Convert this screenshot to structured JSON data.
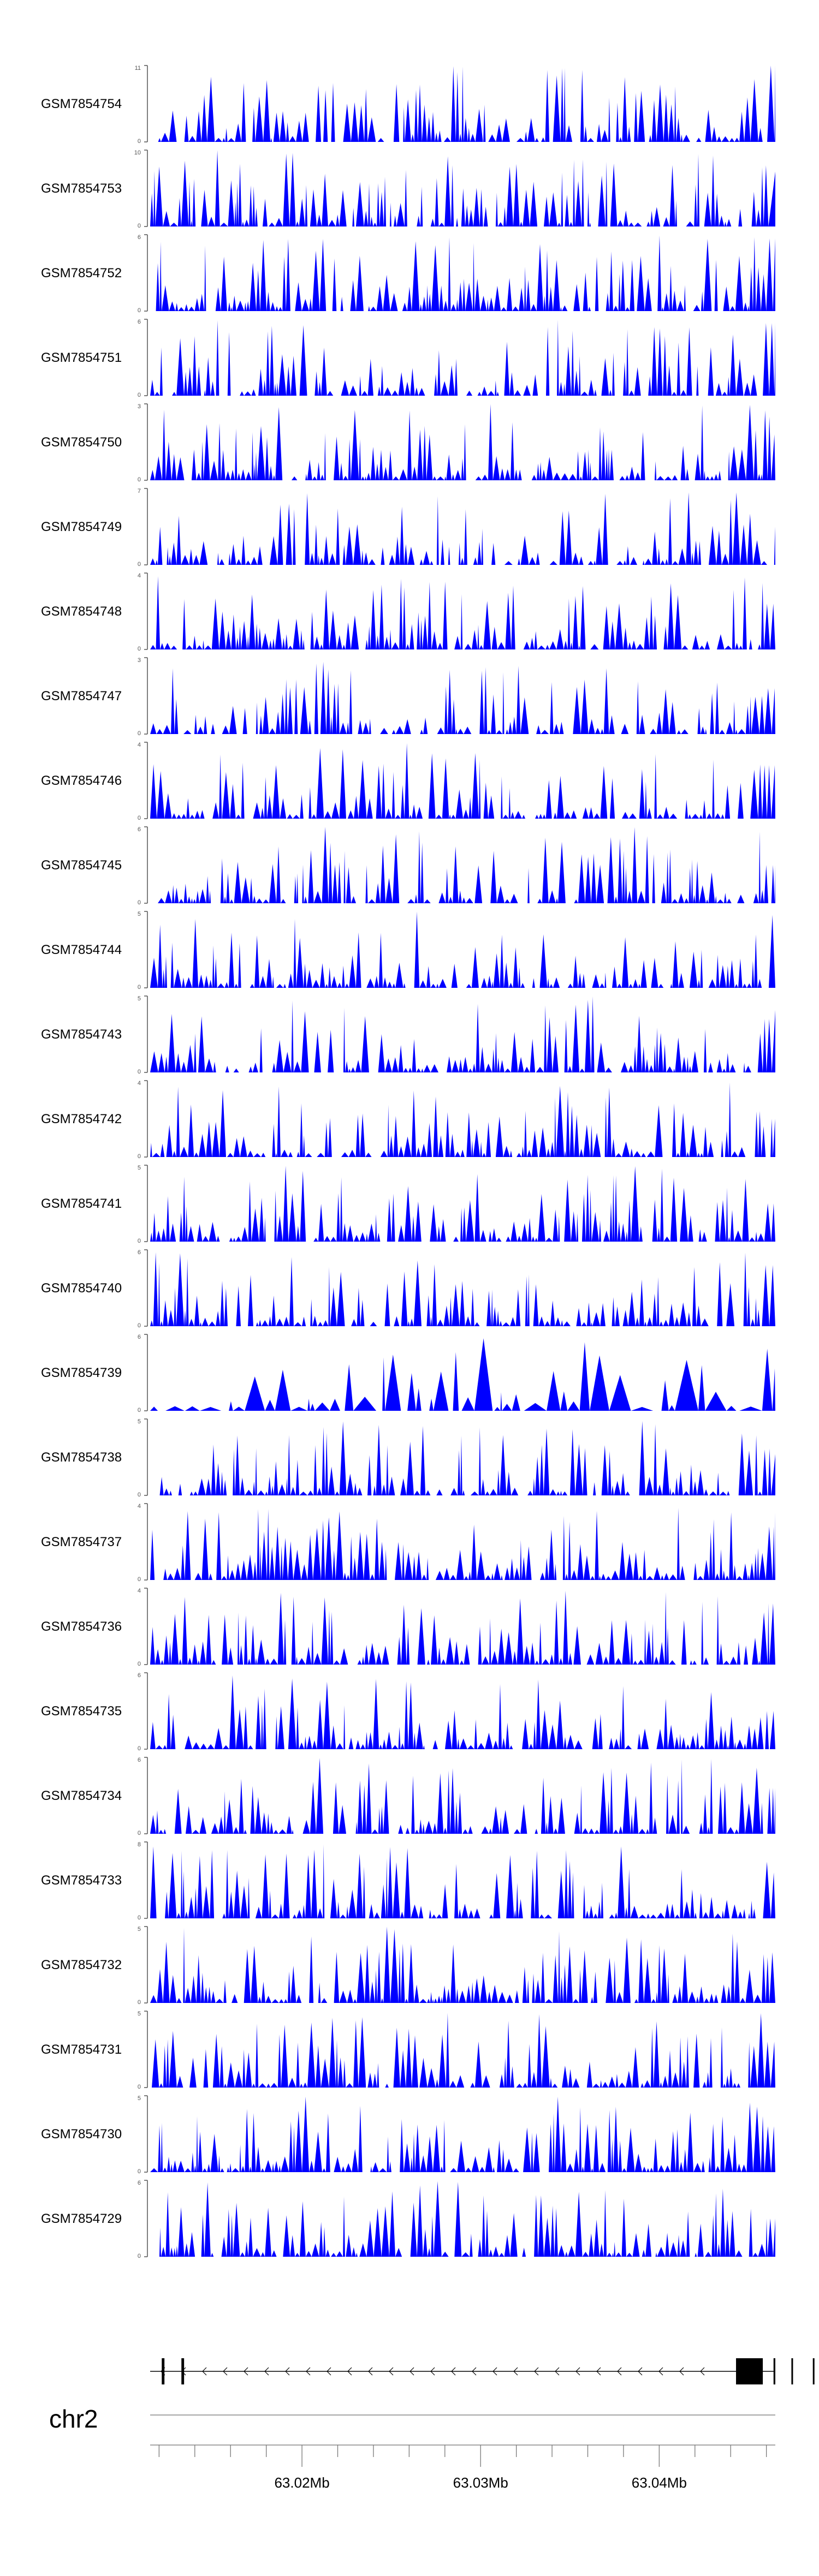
{
  "colors": {
    "signal": "#0000ff",
    "axis": "#555555",
    "gene": "#000000",
    "text": "#000000"
  },
  "chart_data": {
    "type": "area",
    "title": "",
    "xlabel": "",
    "ylabel": "",
    "chromosome": "chr2",
    "x_range_mb": [
      63.0115,
      63.0465
    ],
    "x_ticks": [
      {
        "value": 63.02,
        "label": "63.02Mb"
      },
      {
        "value": 63.03,
        "label": "63.03Mb"
      },
      {
        "value": 63.04,
        "label": "63.04Mb"
      }
    ],
    "tracks": [
      {
        "name": "GSM7854754",
        "ymax": 11,
        "ymin": 0,
        "seed": 11,
        "density": 0.55,
        "tail": 1.0
      },
      {
        "name": "GSM7854753",
        "ymax": 10,
        "ymin": 0,
        "seed": 12,
        "density": 0.5,
        "tail": 0.8
      },
      {
        "name": "GSM7854752",
        "ymax": 6,
        "ymin": 0,
        "seed": 13,
        "density": 0.6,
        "tail": 0.95
      },
      {
        "name": "GSM7854751",
        "ymax": 6,
        "ymin": 0,
        "seed": 14,
        "density": 0.55,
        "tail": 0.95
      },
      {
        "name": "GSM7854750",
        "ymax": 3,
        "ymin": 0,
        "seed": 15,
        "density": 0.8,
        "tail": 0.6
      },
      {
        "name": "GSM7854749",
        "ymax": 7,
        "ymin": 0,
        "seed": 16,
        "density": 0.45,
        "tail": 0.5
      },
      {
        "name": "GSM7854748",
        "ymax": 4,
        "ymin": 0,
        "seed": 17,
        "density": 0.6,
        "tail": 0.6
      },
      {
        "name": "GSM7854747",
        "ymax": 3,
        "ymin": 0,
        "seed": 18,
        "density": 0.5,
        "tail": 0.6
      },
      {
        "name": "GSM7854746",
        "ymax": 4,
        "ymin": 0,
        "seed": 19,
        "density": 0.7,
        "tail": 0.7
      },
      {
        "name": "GSM7854745",
        "ymax": 6,
        "ymin": 0,
        "seed": 20,
        "density": 0.6,
        "tail": 0.5
      },
      {
        "name": "GSM7854744",
        "ymax": 5,
        "ymin": 0,
        "seed": 21,
        "density": 0.65,
        "tail": 0.6
      },
      {
        "name": "GSM7854743",
        "ymax": 5,
        "ymin": 0,
        "seed": 22,
        "density": 0.65,
        "tail": 0.7
      },
      {
        "name": "GSM7854742",
        "ymax": 4,
        "ymin": 0,
        "seed": 23,
        "density": 0.55,
        "tail": 0.5
      },
      {
        "name": "GSM7854741",
        "ymax": 5,
        "ymin": 0,
        "seed": 24,
        "density": 0.6,
        "tail": 0.5
      },
      {
        "name": "GSM7854740",
        "ymax": 6,
        "ymin": 0,
        "seed": 25,
        "density": 0.6,
        "tail": 0.8
      },
      {
        "name": "GSM7854739",
        "ymax": 6,
        "ymin": 0,
        "seed": 26,
        "density": 0.25,
        "tail": 0.4
      },
      {
        "name": "GSM7854738",
        "ymax": 5,
        "ymin": 0,
        "seed": 27,
        "density": 0.65,
        "tail": 0.6
      },
      {
        "name": "GSM7854737",
        "ymax": 4,
        "ymin": 0,
        "seed": 28,
        "density": 0.7,
        "tail": 0.7
      },
      {
        "name": "GSM7854736",
        "ymax": 4,
        "ymin": 0,
        "seed": 29,
        "density": 0.65,
        "tail": 0.8
      },
      {
        "name": "GSM7854735",
        "ymax": 6,
        "ymin": 0,
        "seed": 30,
        "density": 0.6,
        "tail": 0.5
      },
      {
        "name": "GSM7854734",
        "ymax": 6,
        "ymin": 0,
        "seed": 31,
        "density": 0.6,
        "tail": 0.6
      },
      {
        "name": "GSM7854733",
        "ymax": 8,
        "ymin": 0,
        "seed": 32,
        "density": 0.5,
        "tail": 0.6
      },
      {
        "name": "GSM7854732",
        "ymax": 5,
        "ymin": 0,
        "seed": 33,
        "density": 0.7,
        "tail": 0.6
      },
      {
        "name": "GSM7854731",
        "ymax": 5,
        "ymin": 0,
        "seed": 34,
        "density": 0.7,
        "tail": 0.6
      },
      {
        "name": "GSM7854730",
        "ymax": 5,
        "ymin": 0,
        "seed": 35,
        "density": 0.7,
        "tail": 0.6
      },
      {
        "name": "GSM7854729",
        "ymax": 6,
        "ymin": 0,
        "seed": 36,
        "density": 0.55,
        "tail": 0.5
      }
    ],
    "gene_exons_mb": [
      [
        63.01215,
        63.0123
      ],
      [
        63.01325,
        63.0134
      ],
      [
        63.0443,
        63.0458
      ],
      [
        63.0464,
        63.0469
      ],
      [
        63.0474,
        63.0482
      ],
      [
        63.0486,
        63.0491
      ]
    ],
    "gene_span_mb": [
      63.0115,
      63.0495
    ],
    "strand": "-"
  }
}
